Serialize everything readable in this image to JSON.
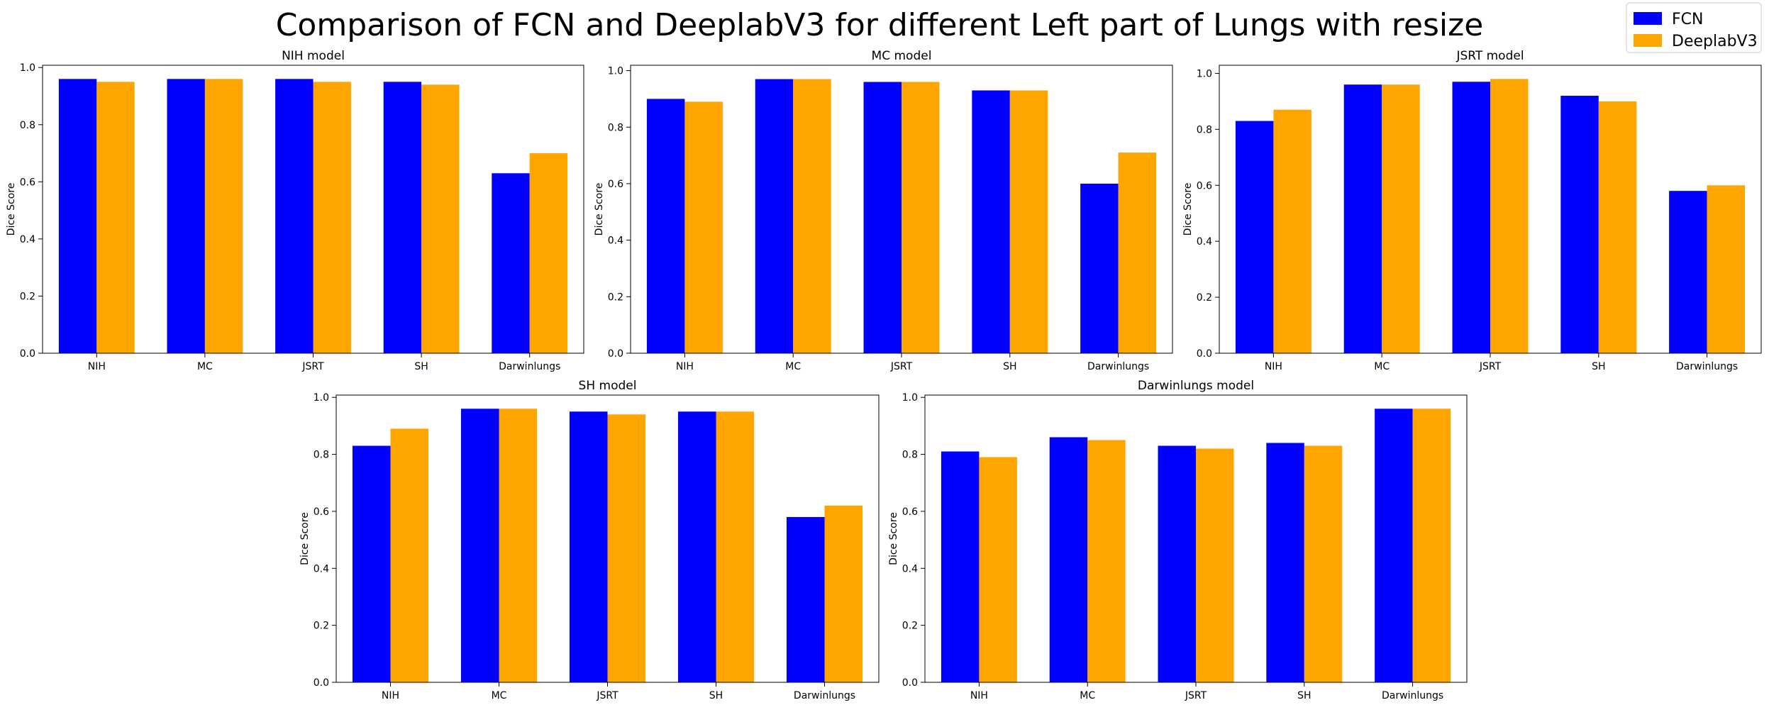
{
  "figure": {
    "title": "Comparison of FCN and DeeplabV3 for different Left part of Lungs with resize",
    "legend": [
      {
        "label": "FCN",
        "color": "#0000ff"
      },
      {
        "label": "DeeplabV3",
        "color": "#ffa500"
      }
    ]
  },
  "chart_data": [
    {
      "type": "bar",
      "title": "NIH model",
      "ylabel": "Dice Score",
      "categories": [
        "NIH",
        "MC",
        "JSRT",
        "SH",
        "Darwinlungs"
      ],
      "series": [
        {
          "name": "FCN",
          "values": [
            0.96,
            0.96,
            0.96,
            0.95,
            0.63
          ]
        },
        {
          "name": "DeeplabV3",
          "values": [
            0.95,
            0.96,
            0.95,
            0.94,
            0.7
          ]
        }
      ],
      "yticks": [
        "0.0",
        "0.2",
        "0.4",
        "0.6",
        "0.8",
        "1.0"
      ],
      "ylim": [
        0,
        1.008
      ]
    },
    {
      "type": "bar",
      "title": "MC model",
      "ylabel": "Dice Score",
      "categories": [
        "NIH",
        "MC",
        "JSRT",
        "SH",
        "Darwinlungs"
      ],
      "series": [
        {
          "name": "FCN",
          "values": [
            0.9,
            0.97,
            0.96,
            0.93,
            0.6
          ]
        },
        {
          "name": "DeeplabV3",
          "values": [
            0.89,
            0.97,
            0.96,
            0.93,
            0.71
          ]
        }
      ],
      "yticks": [
        "0.0",
        "0.2",
        "0.4",
        "0.6",
        "0.8",
        "1.0"
      ],
      "ylim": [
        0,
        1.019
      ]
    },
    {
      "type": "bar",
      "title": "JSRT model",
      "ylabel": "Dice Score",
      "categories": [
        "NIH",
        "MC",
        "JSRT",
        "SH",
        "Darwinlungs"
      ],
      "series": [
        {
          "name": "FCN",
          "values": [
            0.83,
            0.96,
            0.97,
            0.92,
            0.58
          ]
        },
        {
          "name": "DeeplabV3",
          "values": [
            0.87,
            0.96,
            0.98,
            0.9,
            0.6
          ]
        }
      ],
      "yticks": [
        "0.0",
        "0.2",
        "0.4",
        "0.6",
        "0.8",
        "1.0"
      ],
      "ylim": [
        0,
        1.029
      ]
    },
    {
      "type": "bar",
      "title": "SH model",
      "ylabel": "Dice Score",
      "categories": [
        "NIH",
        "MC",
        "JSRT",
        "SH",
        "Darwinlungs"
      ],
      "series": [
        {
          "name": "FCN",
          "values": [
            0.83,
            0.96,
            0.95,
            0.95,
            0.58
          ]
        },
        {
          "name": "DeeplabV3",
          "values": [
            0.89,
            0.96,
            0.94,
            0.95,
            0.62
          ]
        }
      ],
      "yticks": [
        "0.0",
        "0.2",
        "0.4",
        "0.6",
        "0.8",
        "1.0"
      ],
      "ylim": [
        0,
        1.008
      ]
    },
    {
      "type": "bar",
      "title": "Darwinlungs model",
      "ylabel": "Dice Score",
      "categories": [
        "NIH",
        "MC",
        "JSRT",
        "SH",
        "Darwinlungs"
      ],
      "series": [
        {
          "name": "FCN",
          "values": [
            0.81,
            0.86,
            0.83,
            0.84,
            0.96
          ]
        },
        {
          "name": "DeeplabV3",
          "values": [
            0.79,
            0.85,
            0.82,
            0.83,
            0.96
          ]
        }
      ],
      "yticks": [
        "0.0",
        "0.2",
        "0.4",
        "0.6",
        "0.8",
        "1.0"
      ],
      "ylim": [
        0,
        1.008
      ]
    }
  ]
}
